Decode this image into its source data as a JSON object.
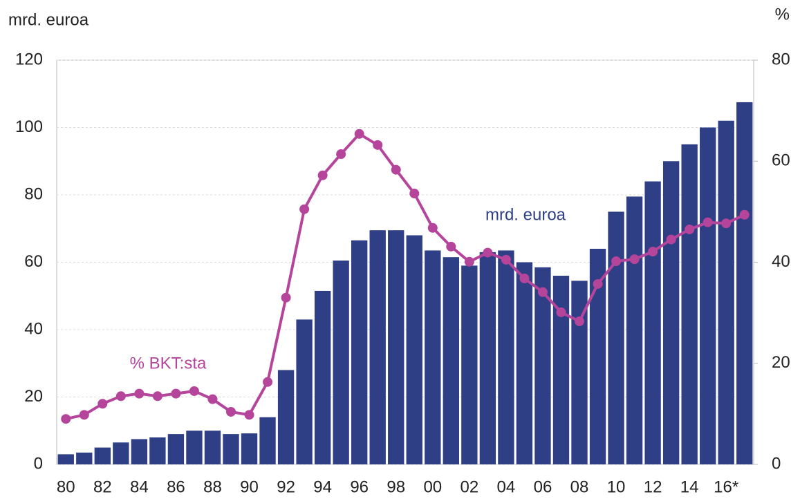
{
  "chart_data": {
    "type": "bar_line",
    "y_label": "mrd. euroa",
    "y2_label": "%",
    "annotations": [
      "mrd. euroa",
      "% BKT:sta"
    ],
    "categories": [
      "80",
      null,
      "82",
      null,
      "84",
      null,
      "86",
      null,
      "88",
      null,
      "90",
      null,
      "92",
      null,
      "94",
      null,
      "96",
      null,
      "98",
      null,
      "00",
      null,
      "02",
      null,
      "04",
      null,
      "06",
      null,
      "08",
      null,
      "10",
      null,
      "12",
      null,
      "14",
      null,
      "16*",
      null
    ],
    "series": [
      {
        "name": "mrd. euroa",
        "type": "bar",
        "axis": "y",
        "color": "#2e3f86",
        "values": [
          3,
          3.5,
          5,
          6.5,
          7.5,
          8,
          9,
          10,
          10,
          9,
          9.2,
          14,
          28,
          43,
          51.5,
          60.5,
          66.5,
          69.5,
          69.5,
          68,
          63.5,
          61.5,
          59,
          63,
          63.5,
          60,
          58.5,
          56,
          54.5,
          64,
          75,
          79.5,
          84,
          90,
          95,
          100,
          102,
          107.5
        ]
      },
      {
        "name": "% BKT:sta",
        "type": "line",
        "axis": "y2",
        "color": "#b5449b",
        "values": [
          9,
          9.8,
          12,
          13.5,
          14,
          13.5,
          14,
          14.5,
          12.9,
          10.4,
          9.8,
          16.3,
          33,
          50.5,
          57.2,
          61.4,
          65.4,
          63.2,
          58.3,
          53.6,
          46.8,
          43.1,
          40.1,
          41.9,
          40.5,
          36.8,
          34.1,
          30.1,
          28.3,
          35.7,
          40.2,
          40.6,
          42.1,
          44.5,
          46.5,
          47.9,
          47.7,
          49.4
        ]
      }
    ],
    "ylim": [
      0,
      120
    ],
    "yticks": [
      0,
      20,
      40,
      60,
      80,
      100,
      120
    ],
    "y2lim": [
      0,
      80
    ],
    "y2ticks": [
      0,
      20,
      40,
      60,
      80
    ],
    "grid": true
  }
}
